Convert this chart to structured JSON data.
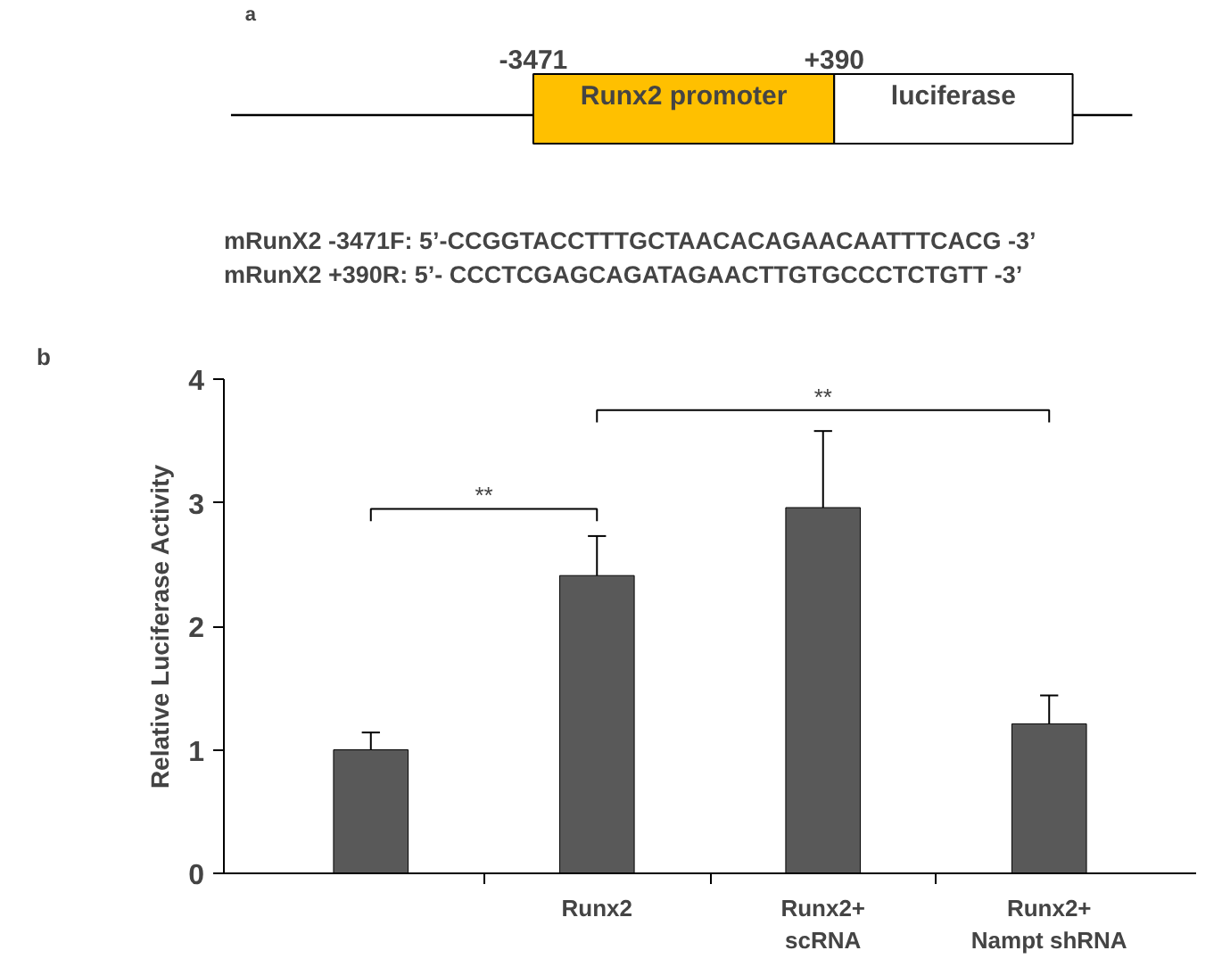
{
  "chart_data": [
    {
      "type": "other",
      "annotations": [
        "a",
        "-3471",
        "+390",
        "Runx2 promoter",
        "luciferase",
        "mRunX2 -3471F: 5’-CCGGTACCTTTGCTAACACAGAACAATTTCACG -3’",
        "mRunX2 +390R: 5’- CCCTCGAGCAGATAGAACTTGTGCCCTCTGTT -3’"
      ]
    },
    {
      "type": "bar",
      "ylabel": "Relative Luciferase Activity",
      "categories": [
        null,
        "Runx2",
        "Runx2+\nscRNA",
        "Runx2+\nNampt shRNA"
      ],
      "values": [
        1.0,
        2.41,
        2.96,
        1.21
      ],
      "errors": [
        0.14,
        0.32,
        0.62,
        0.23
      ],
      "color": "#595959",
      "ylim": [
        0,
        4
      ],
      "yticks": [
        0,
        1,
        2,
        3,
        4
      ],
      "grid": false,
      "annotations": [
        "b",
        "**",
        "**"
      ]
    }
  ]
}
